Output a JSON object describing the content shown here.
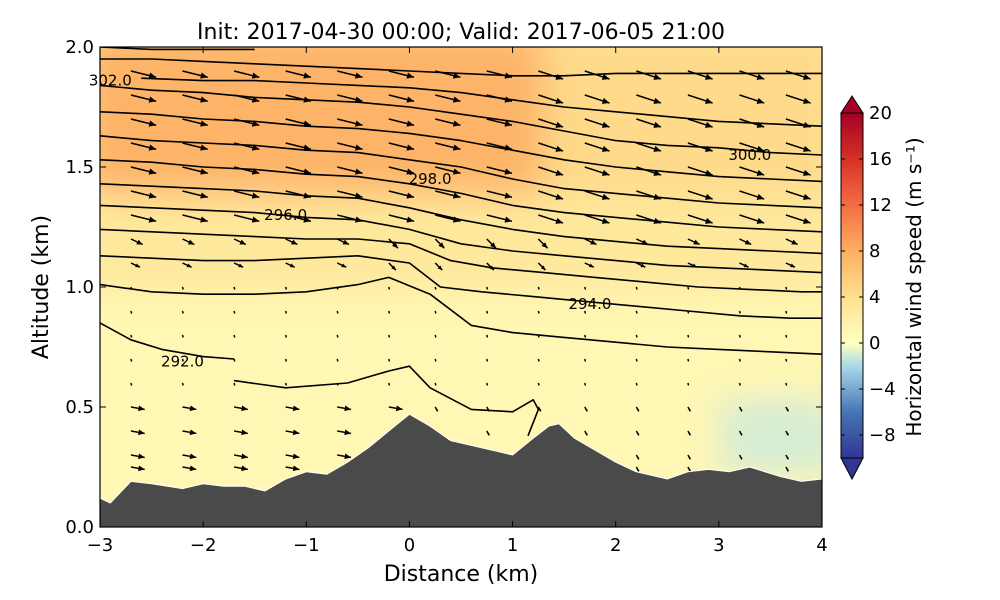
{
  "chart_data": {
    "type": "contourf",
    "title": "Init: 2017-04-30 00:00; Valid: 2017-06-05 21:00",
    "xlabel": "Distance (km)",
    "ylabel": "Altitude (km)",
    "xlim": [
      -3,
      4
    ],
    "ylim": [
      0.0,
      2.0
    ],
    "x_ticks": [
      -3,
      -2,
      -1,
      0,
      1,
      2,
      3,
      4
    ],
    "x_tick_labels": [
      "−3",
      "−2",
      "−1",
      "0",
      "1",
      "2",
      "3",
      "4"
    ],
    "y_ticks": [
      0.0,
      0.5,
      1.0,
      1.5,
      2.0
    ],
    "y_tick_labels": [
      "0.0",
      "0.5",
      "1.0",
      "1.5",
      "2.0"
    ],
    "colorbar": {
      "label": "Horizontal wind speed (m s⁻¹)",
      "range": [
        -10,
        20
      ],
      "ticks": [
        20,
        16,
        12,
        8,
        4,
        0,
        -4,
        -8
      ],
      "tick_labels": [
        "20",
        "16",
        "12",
        "8",
        "4",
        "0",
        "−4",
        "−8"
      ],
      "colormap": "RdYlBu_r",
      "extend": "both"
    },
    "filled_field_regions": [
      {
        "x": [
          -3,
          1.5
        ],
        "z": [
          1.3,
          2.0
        ],
        "speed": 7.5
      },
      {
        "x": [
          1.5,
          4
        ],
        "z": [
          1.2,
          2.0
        ],
        "speed": 4.5
      },
      {
        "x": [
          -3,
          4
        ],
        "z": [
          0.9,
          1.3
        ],
        "speed": 3.0
      },
      {
        "x": [
          -3,
          4
        ],
        "z": [
          0.0,
          0.9
        ],
        "speed": 1.0
      },
      {
        "x": [
          3.2,
          4
        ],
        "z": [
          0.3,
          0.45
        ],
        "speed": -1.0
      }
    ],
    "terrain": {
      "x": [
        -3,
        -2.9,
        -2.7,
        -2.5,
        -2.2,
        -2.0,
        -1.8,
        -1.6,
        -1.4,
        -1.2,
        -1.0,
        -0.8,
        -0.6,
        -0.4,
        -0.2,
        0.0,
        0.2,
        0.4,
        0.6,
        0.8,
        1.0,
        1.2,
        1.35,
        1.45,
        1.6,
        1.8,
        2.0,
        2.2,
        2.5,
        2.7,
        2.9,
        3.1,
        3.3,
        3.6,
        3.8,
        4.0
      ],
      "z": [
        0.12,
        0.1,
        0.19,
        0.18,
        0.16,
        0.18,
        0.17,
        0.17,
        0.15,
        0.2,
        0.23,
        0.22,
        0.27,
        0.33,
        0.4,
        0.47,
        0.42,
        0.36,
        0.34,
        0.32,
        0.3,
        0.37,
        0.42,
        0.43,
        0.37,
        0.32,
        0.27,
        0.23,
        0.2,
        0.23,
        0.24,
        0.23,
        0.25,
        0.21,
        0.19,
        0.2
      ],
      "color": "#4a4a4a"
    },
    "theta_contours": [
      {
        "value": 292.0,
        "x": [
          -3.0,
          -2.7,
          -2.4,
          -2.0,
          -1.7
        ],
        "z": [
          0.85,
          0.78,
          0.74,
          0.71,
          0.7
        ],
        "label": "292.0",
        "label_at": [
          -2.2,
          0.69
        ]
      },
      {
        "value": 292.5,
        "x": [
          -1.7,
          -1.2,
          -0.6,
          -0.2,
          0.0,
          0.2,
          0.6,
          1.0,
          1.2,
          1.25,
          1.15
        ],
        "z": [
          0.61,
          0.58,
          0.6,
          0.65,
          0.67,
          0.58,
          0.49,
          0.48,
          0.53,
          0.49,
          0.38
        ]
      },
      {
        "value": 293.0,
        "x": [
          -3.0,
          -2.5,
          -2.0,
          -1.5,
          -1.0,
          -0.5,
          -0.2,
          0.2,
          0.6,
          1.0,
          1.5,
          2.0,
          2.5,
          3.0,
          3.5,
          4.0
        ],
        "z": [
          1.01,
          0.98,
          0.97,
          0.97,
          0.98,
          1.01,
          1.04,
          0.97,
          0.84,
          0.81,
          0.79,
          0.77,
          0.75,
          0.74,
          0.73,
          0.72
        ]
      },
      {
        "value": 294.0,
        "x": [
          -3.0,
          -2.5,
          -2.0,
          -1.5,
          -1.0,
          -0.5,
          0.0,
          0.3,
          0.7,
          1.2,
          1.7,
          2.2,
          2.7,
          3.2,
          3.7,
          4.0
        ],
        "z": [
          1.13,
          1.12,
          1.11,
          1.11,
          1.12,
          1.13,
          1.1,
          1.0,
          0.98,
          0.96,
          0.94,
          0.92,
          0.9,
          0.88,
          0.87,
          0.87
        ],
        "label": "294.0",
        "label_at": [
          1.75,
          0.93
        ]
      },
      {
        "value": 295.0,
        "x": [
          -3.0,
          -2.5,
          -2.0,
          -1.5,
          -1.0,
          -0.5,
          0.0,
          0.4,
          0.8,
          1.3,
          1.8,
          2.3,
          2.8,
          3.3,
          3.8,
          4.0
        ],
        "z": [
          1.24,
          1.23,
          1.22,
          1.21,
          1.2,
          1.2,
          1.18,
          1.11,
          1.08,
          1.06,
          1.04,
          1.02,
          1.0,
          0.99,
          0.98,
          0.98
        ]
      },
      {
        "value": 295.5,
        "x": [
          -3.0,
          -2.5,
          -2.0,
          -1.5,
          -1.0,
          -0.5,
          0.0,
          0.5,
          1.0,
          1.5,
          2.0,
          2.5,
          3.0,
          3.5,
          4.0
        ],
        "z": [
          1.34,
          1.33,
          1.32,
          1.31,
          1.29,
          1.28,
          1.24,
          1.18,
          1.15,
          1.13,
          1.11,
          1.09,
          1.08,
          1.07,
          1.06
        ]
      },
      {
        "value": 296.0,
        "x": [
          -3.0,
          -2.5,
          -2.0,
          -1.5,
          -1.0,
          -0.5,
          0.0,
          0.5,
          1.0,
          1.5,
          2.0,
          2.5,
          3.0,
          3.5,
          4.0
        ],
        "z": [
          1.43,
          1.42,
          1.41,
          1.4,
          1.38,
          1.37,
          1.33,
          1.28,
          1.24,
          1.21,
          1.19,
          1.17,
          1.16,
          1.15,
          1.14
        ],
        "label": "296.0",
        "label_at": [
          -1.2,
          1.3
        ]
      },
      {
        "value": 297.0,
        "x": [
          -3.0,
          -2.5,
          -2.0,
          -1.5,
          -1.0,
          -0.5,
          0.0,
          0.5,
          1.0,
          1.5,
          2.0,
          2.5,
          3.0,
          3.5,
          4.0
        ],
        "z": [
          1.53,
          1.52,
          1.5,
          1.49,
          1.47,
          1.46,
          1.43,
          1.39,
          1.34,
          1.31,
          1.29,
          1.27,
          1.25,
          1.24,
          1.23
        ]
      },
      {
        "value": 298.0,
        "x": [
          -3.0,
          -2.5,
          -2.0,
          -1.5,
          -1.0,
          -0.5,
          0.0,
          0.5,
          1.0,
          1.5,
          2.0,
          2.5,
          3.0,
          3.5,
          4.0
        ],
        "z": [
          1.63,
          1.61,
          1.6,
          1.59,
          1.57,
          1.56,
          1.53,
          1.5,
          1.45,
          1.41,
          1.39,
          1.37,
          1.35,
          1.34,
          1.33
        ],
        "label": "298.0",
        "label_at": [
          0.2,
          1.45
        ]
      },
      {
        "value": 299.0,
        "x": [
          -3.0,
          -2.5,
          -2.0,
          -1.5,
          -1.0,
          -0.5,
          0.0,
          0.5,
          1.0,
          1.5,
          2.0,
          2.5,
          3.0,
          3.5,
          4.0
        ],
        "z": [
          1.73,
          1.72,
          1.7,
          1.69,
          1.67,
          1.66,
          1.64,
          1.61,
          1.57,
          1.53,
          1.5,
          1.48,
          1.46,
          1.45,
          1.44
        ]
      },
      {
        "value": 300.0,
        "x": [
          -3.0,
          -2.5,
          -2.0,
          -1.5,
          -1.0,
          -0.5,
          0.0,
          0.5,
          1.0,
          1.5,
          2.0,
          2.5,
          3.0,
          3.5,
          4.0
        ],
        "z": [
          1.84,
          1.82,
          1.81,
          1.79,
          1.78,
          1.77,
          1.75,
          1.72,
          1.69,
          1.65,
          1.61,
          1.59,
          1.58,
          1.56,
          1.55
        ],
        "label": "300.0",
        "label_at": [
          3.3,
          1.55
        ]
      },
      {
        "value": 301.0,
        "x": [
          -2.6,
          -2.0,
          -1.5,
          -1.0,
          -0.5,
          0.0,
          0.5,
          1.0,
          1.5,
          2.0,
          2.5,
          3.0,
          3.5,
          4.0
        ],
        "z": [
          1.87,
          1.86,
          1.86,
          1.85,
          1.84,
          1.83,
          1.81,
          1.78,
          1.75,
          1.73,
          1.71,
          1.69,
          1.68,
          1.67
        ]
      },
      {
        "value": 302.0,
        "x": [
          -3.0,
          -2.5,
          -2.0,
          -1.5,
          -1.0,
          -0.5,
          0.0,
          0.5,
          1.0,
          1.5,
          2.0,
          2.5,
          3.0,
          3.5,
          4.0
        ],
        "z": [
          1.95,
          1.95,
          1.94,
          1.93,
          1.92,
          1.91,
          1.9,
          1.89,
          1.88,
          1.88,
          1.89,
          1.89,
          1.89,
          1.89,
          1.89
        ],
        "label": "302.0",
        "label_at": [
          -2.9,
          1.86
        ]
      },
      {
        "value": 303.0,
        "x": [
          -3.0,
          -2.5,
          -2.0,
          -1.5
        ],
        "z": [
          2.0,
          1.99,
          1.99,
          1.99
        ]
      }
    ],
    "wind_vectors": {
      "columns_x": [
        -2.7,
        -2.2,
        -1.7,
        -1.2,
        -0.7,
        -0.2,
        0.25,
        0.75,
        1.25,
        1.7,
        2.2,
        2.7,
        3.2,
        3.65
      ],
      "rows_z": [
        1.9,
        1.8,
        1.7,
        1.6,
        1.5,
        1.4,
        1.3,
        1.2,
        1.1,
        1.0,
        0.9,
        0.8,
        0.7,
        0.6,
        0.5,
        0.4,
        0.3,
        0.25
      ],
      "description": "upper-level vectors point eastward (~5 m/s) with slight downward tilt; weak near-zero flow at mid-levels; stronger eastward flow near the western terrain below 0.5 km"
    }
  }
}
